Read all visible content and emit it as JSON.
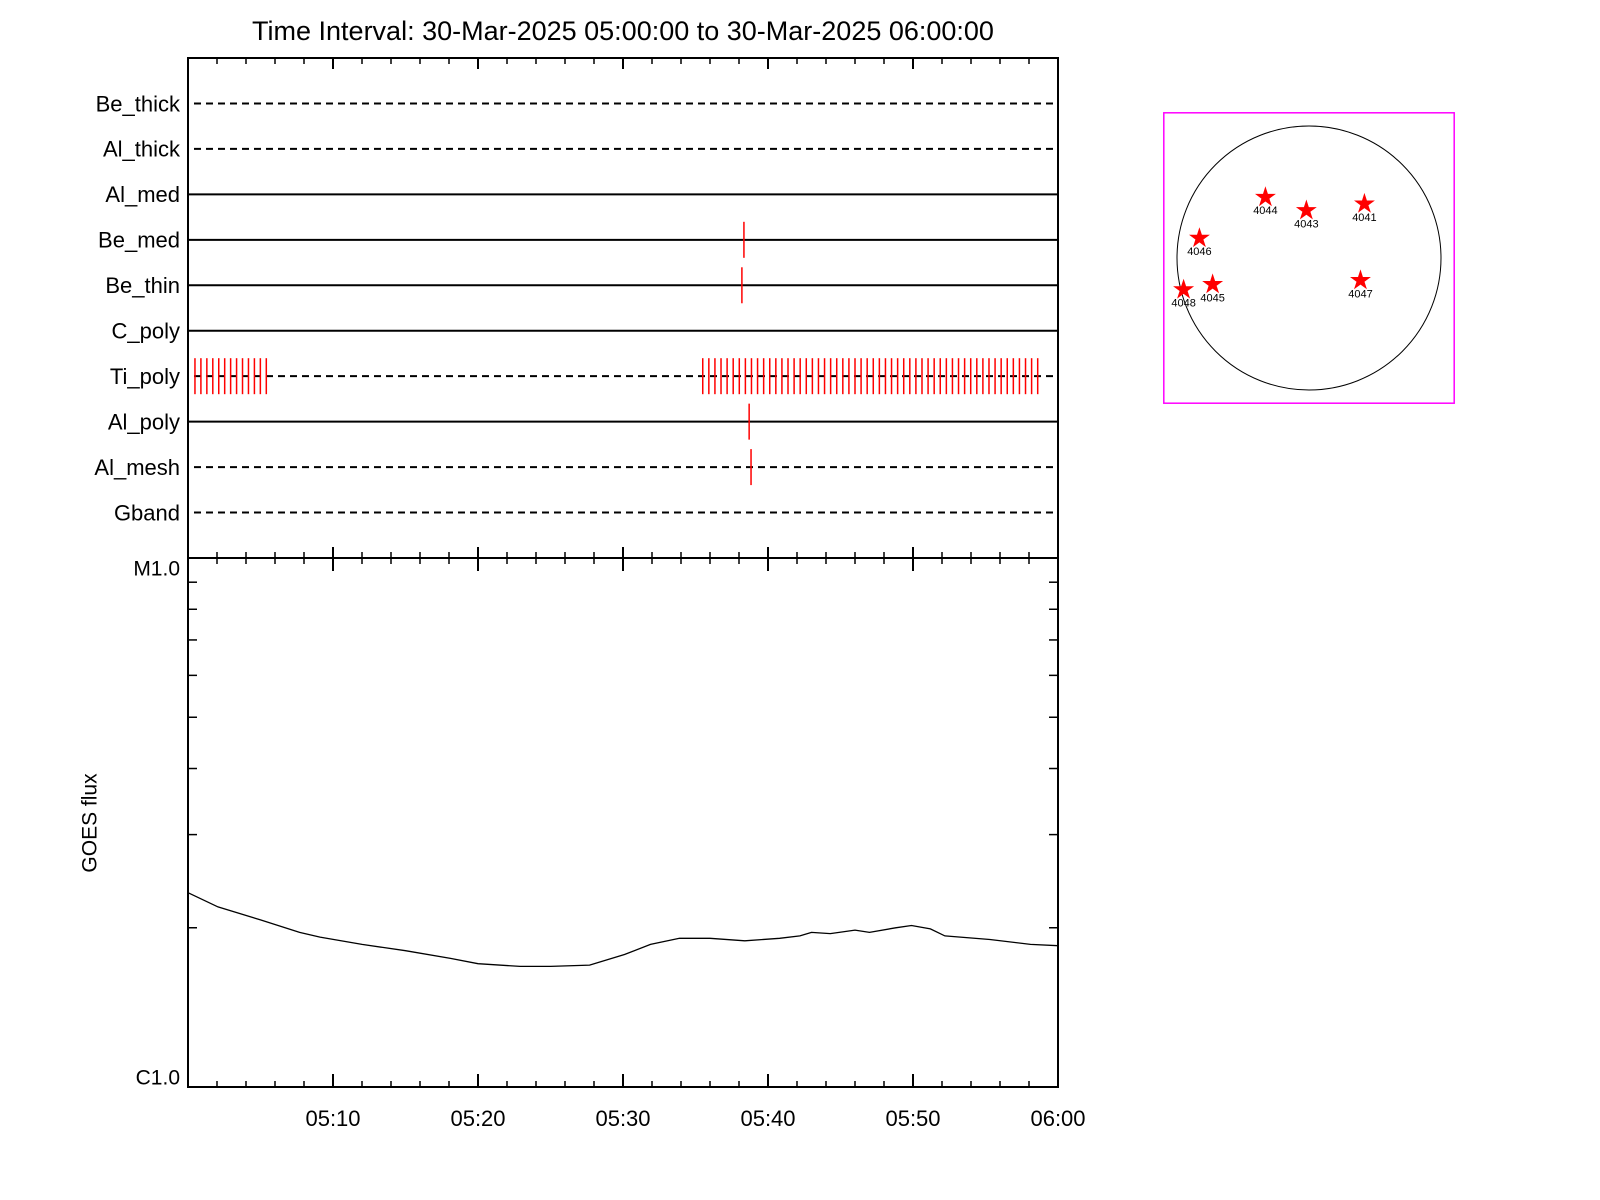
{
  "chart_data": [
    {
      "type": "timeline",
      "title": "Time Interval: 30-Mar-2025 05:00:00 to 30-Mar-2025 06:00:00",
      "categories": [
        "Be_thick",
        "Al_thick",
        "Al_med",
        "Be_med",
        "Be_thin",
        "C_poly",
        "Ti_poly",
        "Al_poly",
        "Al_mesh",
        "Gband"
      ],
      "styles": [
        "dashed",
        "dashed",
        "solid",
        "solid",
        "solid",
        "solid",
        "dashed",
        "solid",
        "dashed",
        "dashed"
      ],
      "events": [
        [],
        [],
        [],
        [
          38.34
        ],
        [
          38.2
        ],
        [],
        [
          0.48,
          0.89,
          1.3,
          1.71,
          2.12,
          2.53,
          2.94,
          3.35,
          3.76,
          4.17,
          4.58,
          4.99,
          5.4,
          35.5,
          35.92,
          36.34,
          36.76,
          37.18,
          37.6,
          38.02,
          38.44,
          38.86,
          39.28,
          39.7,
          40.12,
          40.54,
          40.96,
          41.38,
          41.8,
          42.22,
          42.64,
          43.06,
          43.48,
          43.9,
          44.32,
          44.74,
          45.16,
          45.58,
          46.0,
          46.42,
          46.84,
          47.26,
          47.68,
          48.1,
          48.52,
          48.94,
          49.36,
          49.78,
          50.2,
          50.62,
          51.04,
          51.46,
          51.88,
          52.3,
          52.72,
          53.14,
          53.56,
          53.98,
          54.4,
          54.82,
          55.24,
          55.66,
          56.08,
          56.5,
          56.92,
          57.34,
          57.76,
          58.18,
          58.6
        ],
        [
          38.7
        ],
        [
          38.83
        ],
        []
      ],
      "event_color": "#ff0000",
      "xlim": [
        0,
        60
      ],
      "xticks": [
        10,
        20,
        30,
        40,
        50,
        60
      ]
    },
    {
      "type": "line",
      "ylabel": "GOES flux",
      "x": [
        0,
        2.07,
        5,
        7.7,
        9.1,
        12,
        15,
        18.1,
        20,
        22.9,
        25,
        27.7,
        30.1,
        31.9,
        33.9,
        36,
        38.4,
        40.8,
        42.2,
        43.0,
        44.3,
        46,
        47.0,
        48.8,
        49.9,
        51.2,
        52.2,
        55.3,
        58.1,
        60
      ],
      "values": [
        2.33e-06,
        2.19e-06,
        2.07e-06,
        1.96e-06,
        1.92e-06,
        1.86e-06,
        1.81e-06,
        1.75e-06,
        1.71e-06,
        1.69e-06,
        1.69e-06,
        1.7e-06,
        1.78e-06,
        1.86e-06,
        1.91e-06,
        1.91e-06,
        1.89e-06,
        1.91e-06,
        1.93e-06,
        1.96e-06,
        1.95e-06,
        1.98e-06,
        1.96e-06,
        2e-06,
        2.02e-06,
        1.99e-06,
        1.93e-06,
        1.9e-06,
        1.86e-06,
        1.85e-06
      ],
      "color": "#000000",
      "log_scale": true,
      "xlim": [
        0,
        60
      ],
      "xticks": [
        {
          "value": 10,
          "label": "05:10"
        },
        {
          "value": 20,
          "label": "05:20"
        },
        {
          "value": 30,
          "label": "05:30"
        },
        {
          "value": 40,
          "label": "05:40"
        },
        {
          "value": 50,
          "label": "05:50"
        },
        {
          "value": 60,
          "label": "06:00"
        }
      ],
      "ylim": [
        1e-06,
        1e-05
      ],
      "yticks": [
        {
          "value": 1e-05,
          "label": "M1.0"
        },
        {
          "value": 1e-06,
          "label": "C1.0"
        }
      ]
    },
    {
      "type": "scatter",
      "labels": [
        "4044",
        "4043",
        "4041",
        "4046",
        "4048",
        "4045",
        "4047"
      ],
      "x": [
        -0.33,
        -0.02,
        0.42,
        -0.83,
        -0.95,
        -0.73,
        0.39
      ],
      "y": [
        0.46,
        0.36,
        0.41,
        0.15,
        -0.24,
        -0.2,
        -0.17
      ],
      "color": "#ff0000",
      "frame_color": "#ff00ff",
      "xlim": [
        -1.1,
        1.1
      ],
      "ylim": [
        -1.1,
        1.1
      ]
    }
  ]
}
